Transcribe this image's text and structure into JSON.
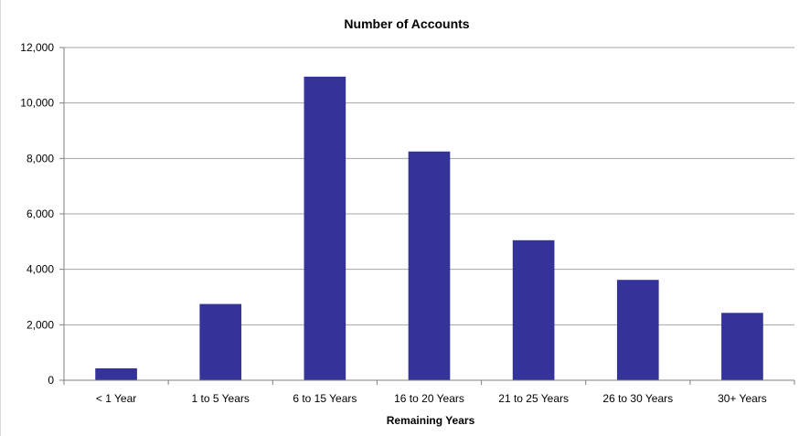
{
  "chart_data": {
    "type": "bar",
    "title": "Number of Accounts",
    "xlabel": "Remaining Years",
    "ylabel": "",
    "categories": [
      "< 1 Year",
      "1 to 5 Years",
      "6 to 15 Years",
      "16 to 20 Years",
      "21 to 25 Years",
      "26 to 30 Years",
      "30+ Years"
    ],
    "values": [
      430,
      2750,
      10950,
      8250,
      5050,
      3620,
      2430
    ],
    "ylim": [
      0,
      12000
    ],
    "yticks": [
      0,
      2000,
      4000,
      6000,
      8000,
      10000,
      12000
    ],
    "ytick_labels": [
      "0",
      "2,000",
      "4,000",
      "6,000",
      "8,000",
      "10,000",
      "12,000"
    ],
    "grid": true,
    "legend": "none",
    "colors": {
      "bar": "#333399",
      "grid": "#a6a6a6",
      "axis": "#7f7f7f"
    }
  }
}
